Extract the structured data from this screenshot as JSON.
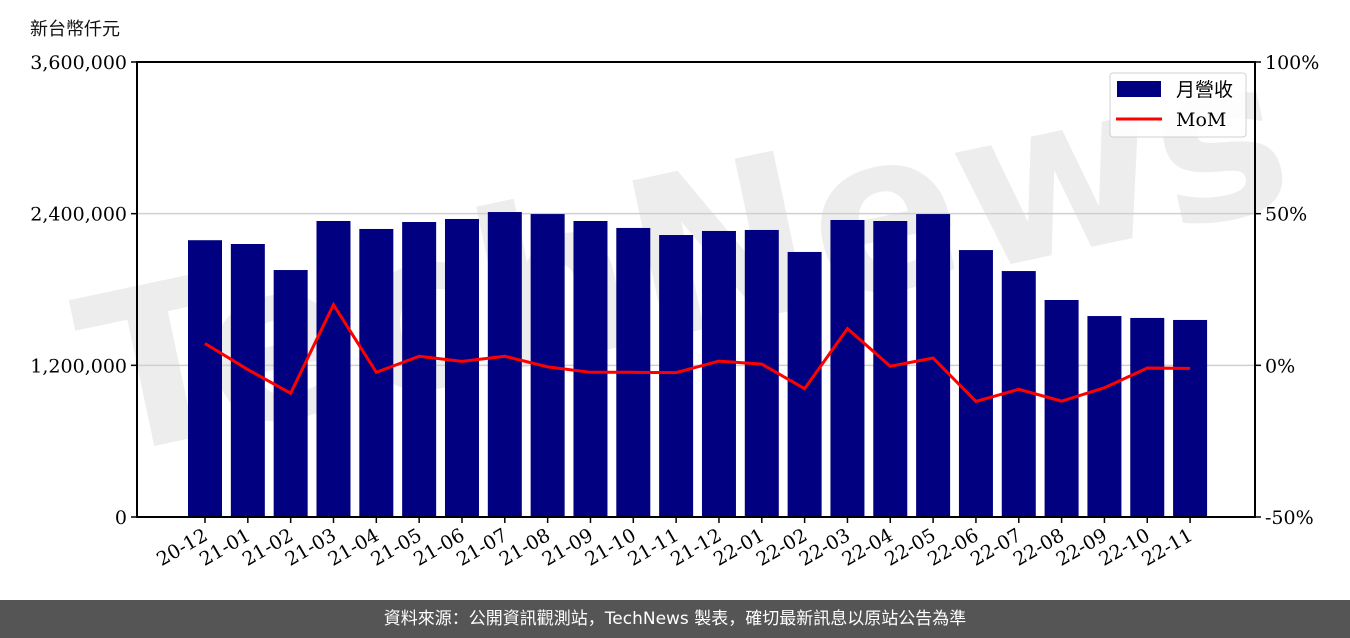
{
  "chart_data": {
    "type": "bar+line",
    "unit_label": "新台幣仟元",
    "categories": [
      "20-12",
      "21-01",
      "21-02",
      "21-03",
      "21-04",
      "21-05",
      "21-06",
      "21-07",
      "21-08",
      "21-09",
      "21-10",
      "21-11",
      "21-12",
      "22-01",
      "22-02",
      "22-03",
      "22-04",
      "22-05",
      "22-06",
      "22-07",
      "22-08",
      "22-09",
      "22-10",
      "22-11"
    ],
    "series": [
      {
        "name": "月營收",
        "type": "bar",
        "axis": "left",
        "color": "#000080",
        "values": [
          2190000,
          2160000,
          1954000,
          2342000,
          2279000,
          2334000,
          2358000,
          2413000,
          2397000,
          2342000,
          2287000,
          2231000,
          2263000,
          2271000,
          2097000,
          2350000,
          2342000,
          2397000,
          2112000,
          1946000,
          1717000,
          1590000,
          1575000,
          1559000
        ]
      },
      {
        "name": "MoM",
        "type": "line",
        "axis": "right",
        "color": "#ff0000",
        "values": [
          7.2,
          -1.4,
          -9.2,
          20.0,
          -2.3,
          3.0,
          1.3,
          3.0,
          -0.5,
          -2.3,
          -2.3,
          -2.4,
          1.4,
          0.4,
          -7.7,
          12.1,
          -0.3,
          2.4,
          -11.9,
          -7.9,
          -11.8,
          -7.4,
          -0.9,
          -1.0
        ]
      }
    ],
    "left_axis": {
      "ylim": [
        0,
        3600000
      ],
      "ticks": [
        "0",
        "1,200,000",
        "2,400,000",
        "3,600,000"
      ],
      "tick_values": [
        0,
        1200000,
        2400000,
        3600000
      ]
    },
    "right_axis": {
      "ylim": [
        -50,
        100
      ],
      "ticks": [
        "-50%",
        "0%",
        "50%",
        "100%"
      ],
      "tick_values": [
        -50,
        0,
        50,
        100
      ]
    },
    "grid": "horizontal",
    "legend_position": "top-right",
    "watermark": "TechNews"
  },
  "footer": {
    "source": "資料來源：公開資訊觀測站，TechNews 製表，確切最新訊息以原站公告為準"
  }
}
